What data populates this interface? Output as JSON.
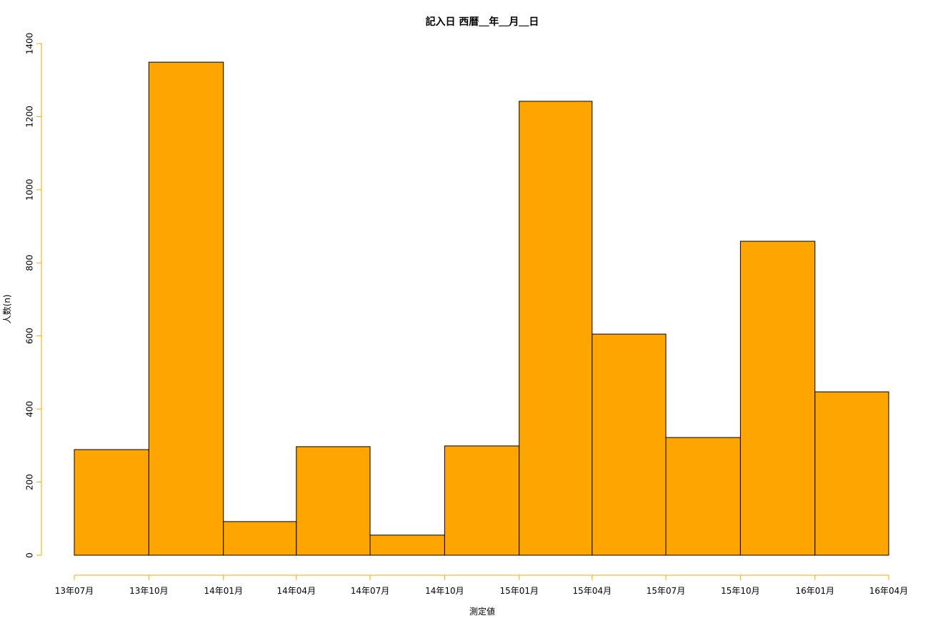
{
  "chart_data": {
    "type": "histogram",
    "title": "記入日 西暦＿年＿月＿日",
    "x_label": "測定値",
    "y_label": "人数(n)",
    "bins": [
      "13年07月",
      "13年10月",
      "14年01月",
      "14年04月",
      "14年07月",
      "14年10月",
      "15年01月",
      "15年04月",
      "15年07月",
      "15年10月",
      "16年01月",
      "16年04月"
    ],
    "values": [
      289,
      1349,
      92,
      297,
      55,
      299,
      1242,
      605,
      322,
      859,
      447
    ],
    "color": "#ffa500",
    "edge_color": "#000000",
    "axis_color": "#ffa500",
    "ylim": [
      0,
      1400
    ],
    "yticks": [
      0,
      200,
      400,
      600,
      800,
      1000,
      1200,
      1400
    ]
  }
}
